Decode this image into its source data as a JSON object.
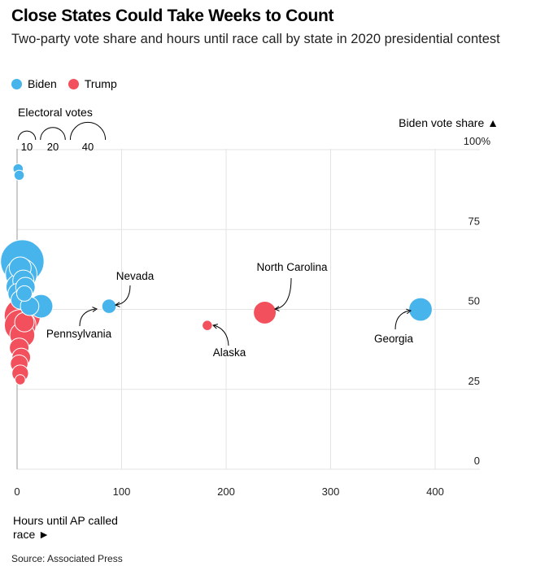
{
  "header": {
    "title": "Close States Could Take Weeks to Count",
    "subtitle": "Two-party vote share and hours until race call by state in 2020 presidential contest"
  },
  "legend": {
    "items": [
      {
        "label": "Biden",
        "color": "#47b4ec"
      },
      {
        "label": "Trump",
        "color": "#f2505d"
      }
    ],
    "size_title": "Electoral votes",
    "size_values": [
      "10",
      "20",
      "40"
    ]
  },
  "axis_labels": {
    "y": "Biden vote share ▲",
    "x": "Hours until AP called race ►"
  },
  "source": "Source: Associated Press",
  "chart_data": {
    "type": "scatter",
    "title": "Close States Could Take Weeks to Count",
    "subtitle": "Two-party vote share and hours until race call by state in 2020 presidential contest",
    "xlabel": "Hours until AP called race",
    "ylabel": "Biden vote share",
    "xlim": [
      0,
      440
    ],
    "ylim": [
      0,
      100
    ],
    "x_ticks": [
      "0",
      "100",
      "200",
      "300",
      "400"
    ],
    "y_ticks": [
      "0",
      "25",
      "50",
      "75",
      "100%"
    ],
    "grid": true,
    "legend_position": "top-left",
    "size_legend": [
      10,
      20,
      40
    ],
    "series": [
      {
        "name": "Biden",
        "color": "#47b4ec",
        "points": [
          {
            "x": 1,
            "y": 94,
            "ev": 3
          },
          {
            "x": 2,
            "y": 92,
            "ev": 3
          },
          {
            "x": 5,
            "y": 65,
            "ev": 55
          },
          {
            "x": 4,
            "y": 61,
            "ev": 29
          },
          {
            "x": 2,
            "y": 57,
            "ev": 20
          },
          {
            "x": 3,
            "y": 63,
            "ev": 14
          },
          {
            "x": 6,
            "y": 59,
            "ev": 13
          },
          {
            "x": 1,
            "y": 55,
            "ev": 12
          },
          {
            "x": 3,
            "y": 53,
            "ev": 10
          },
          {
            "x": 8,
            "y": 57,
            "ev": 11
          },
          {
            "x": 7,
            "y": 55,
            "ev": 7
          },
          {
            "x": 23,
            "y": 51,
            "ev": 16
          },
          {
            "x": 12,
            "y": 51,
            "ev": 10
          },
          {
            "x": 88,
            "y": 51,
            "ev": 6
          },
          {
            "x": 386,
            "y": 50,
            "ev": 16
          }
        ]
      },
      {
        "name": "Trump",
        "color": "#f2505d",
        "points": [
          {
            "x": 5,
            "y": 48,
            "ev": 38
          },
          {
            "x": 3,
            "y": 45,
            "ev": 29
          },
          {
            "x": 5,
            "y": 42,
            "ev": 18
          },
          {
            "x": 7,
            "y": 46,
            "ev": 11
          },
          {
            "x": 2,
            "y": 38,
            "ev": 11
          },
          {
            "x": 4,
            "y": 35,
            "ev": 10
          },
          {
            "x": 2,
            "y": 33,
            "ev": 9
          },
          {
            "x": 3,
            "y": 30,
            "ev": 8
          },
          {
            "x": 3,
            "y": 28,
            "ev": 3
          },
          {
            "x": 182,
            "y": 45,
            "ev": 3
          },
          {
            "x": 237,
            "y": 49,
            "ev": 15
          }
        ]
      }
    ],
    "annotations": [
      {
        "label": "Pennsylvania",
        "x": 88,
        "y": 51
      },
      {
        "label": "Nevada",
        "x": 88,
        "y": 51
      },
      {
        "label": "North Carolina",
        "x": 237,
        "y": 49
      },
      {
        "label": "Alaska",
        "x": 182,
        "y": 45
      },
      {
        "label": "Georgia",
        "x": 386,
        "y": 50
      }
    ]
  }
}
